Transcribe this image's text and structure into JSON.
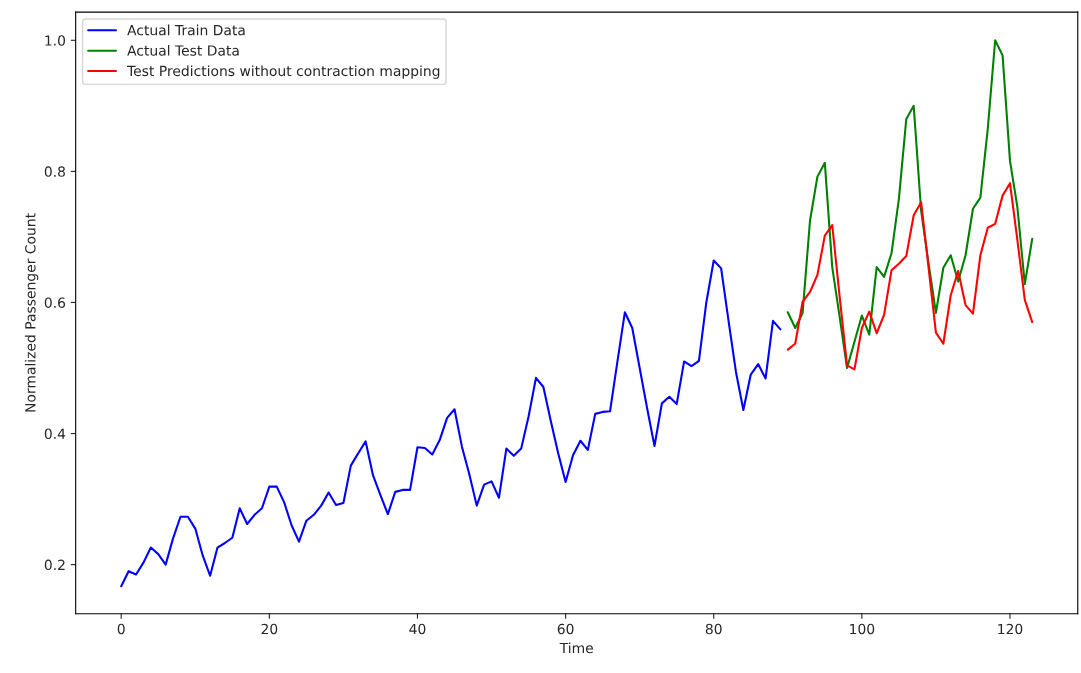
{
  "chart_data": {
    "type": "line",
    "xlabel": "Time",
    "ylabel": "Normalized Passenger Count",
    "xlim": [
      -6.15,
      129.15
    ],
    "ylim": [
      0.125,
      1.043
    ],
    "xticks": [
      0,
      20,
      40,
      60,
      80,
      100,
      120
    ],
    "yticks": [
      {
        "value": 0.2,
        "label": "0.2"
      },
      {
        "value": 0.4,
        "label": "0.4"
      },
      {
        "value": 0.6,
        "label": "0.6"
      },
      {
        "value": 0.8,
        "label": "0.8"
      },
      {
        "value": 1.0,
        "label": "1.0"
      }
    ],
    "grid": false,
    "legend": "top left",
    "line_style": "solid",
    "marker": "none",
    "series": [
      {
        "name": "Actual Train Data",
        "color": "#0000ff",
        "x": [
          0,
          1,
          2,
          3,
          4,
          5,
          6,
          7,
          8,
          9,
          10,
          11,
          12,
          13,
          14,
          15,
          16,
          17,
          18,
          19,
          20,
          21,
          22,
          23,
          24,
          25,
          26,
          27,
          28,
          29,
          30,
          31,
          32,
          33,
          34,
          35,
          36,
          37,
          38,
          39,
          40,
          41,
          42,
          43,
          44,
          45,
          46,
          47,
          48,
          49,
          50,
          51,
          52,
          53,
          54,
          55,
          56,
          57,
          58,
          59,
          60,
          61,
          62,
          63,
          64,
          65,
          66,
          67,
          68,
          69,
          70,
          71,
          72,
          73,
          74,
          75,
          76,
          77,
          78,
          79,
          80,
          81,
          82,
          83,
          84,
          85,
          86,
          87,
          88,
          89
        ],
        "values": [
          0.167,
          0.19,
          0.185,
          0.203,
          0.226,
          0.216,
          0.2,
          0.24,
          0.273,
          0.273,
          0.255,
          0.214,
          0.183,
          0.226,
          0.233,
          0.241,
          0.286,
          0.262,
          0.276,
          0.286,
          0.319,
          0.319,
          0.295,
          0.26,
          0.235,
          0.267,
          0.276,
          0.29,
          0.31,
          0.291,
          0.294,
          0.351,
          0.37,
          0.388,
          0.336,
          0.306,
          0.277,
          0.311,
          0.314,
          0.314,
          0.379,
          0.378,
          0.368,
          0.39,
          0.424,
          0.437,
          0.38,
          0.338,
          0.29,
          0.322,
          0.327,
          0.302,
          0.377,
          0.366,
          0.377,
          0.426,
          0.485,
          0.471,
          0.419,
          0.37,
          0.326,
          0.367,
          0.389,
          0.375,
          0.43,
          0.433,
          0.434,
          0.51,
          0.585,
          0.561,
          0.5,
          0.439,
          0.381,
          0.446,
          0.456,
          0.445,
          0.51,
          0.503,
          0.511,
          0.6,
          0.664,
          0.652,
          0.572,
          0.494,
          0.436,
          0.49,
          0.506,
          0.484,
          0.572,
          0.559
        ]
      },
      {
        "name": "Actual Test Data",
        "color": "#008000",
        "x": [
          90,
          91,
          92,
          93,
          94,
          95,
          96,
          97,
          98,
          99,
          100,
          101,
          102,
          103,
          104,
          105,
          106,
          107,
          108,
          109,
          110,
          111,
          112,
          113,
          114,
          115,
          116,
          117,
          118,
          119,
          120,
          121,
          122,
          123
        ],
        "values": [
          0.585,
          0.561,
          0.584,
          0.725,
          0.792,
          0.813,
          0.654,
          0.578,
          0.5,
          0.54,
          0.58,
          0.551,
          0.654,
          0.639,
          0.675,
          0.758,
          0.88,
          0.9,
          0.74,
          0.66,
          0.584,
          0.653,
          0.672,
          0.632,
          0.672,
          0.743,
          0.76,
          0.865,
          1.0,
          0.977,
          0.816,
          0.745,
          0.628,
          0.697
        ]
      },
      {
        "name": "Test Predictions without contraction mapping",
        "color": "#ff0000",
        "x": [
          90,
          91,
          92,
          93,
          94,
          95,
          96,
          97,
          98,
          99,
          100,
          101,
          102,
          103,
          104,
          105,
          106,
          107,
          108,
          109,
          110,
          111,
          112,
          113,
          114,
          115,
          116,
          117,
          118,
          119,
          120,
          121,
          122,
          123
        ],
        "values": [
          0.528,
          0.537,
          0.601,
          0.616,
          0.642,
          0.702,
          0.718,
          0.609,
          0.504,
          0.498,
          0.561,
          0.586,
          0.553,
          0.581,
          0.649,
          0.659,
          0.671,
          0.733,
          0.753,
          0.654,
          0.554,
          0.537,
          0.611,
          0.648,
          0.596,
          0.583,
          0.672,
          0.714,
          0.72,
          0.763,
          0.782,
          0.695,
          0.604,
          0.57
        ]
      }
    ]
  }
}
